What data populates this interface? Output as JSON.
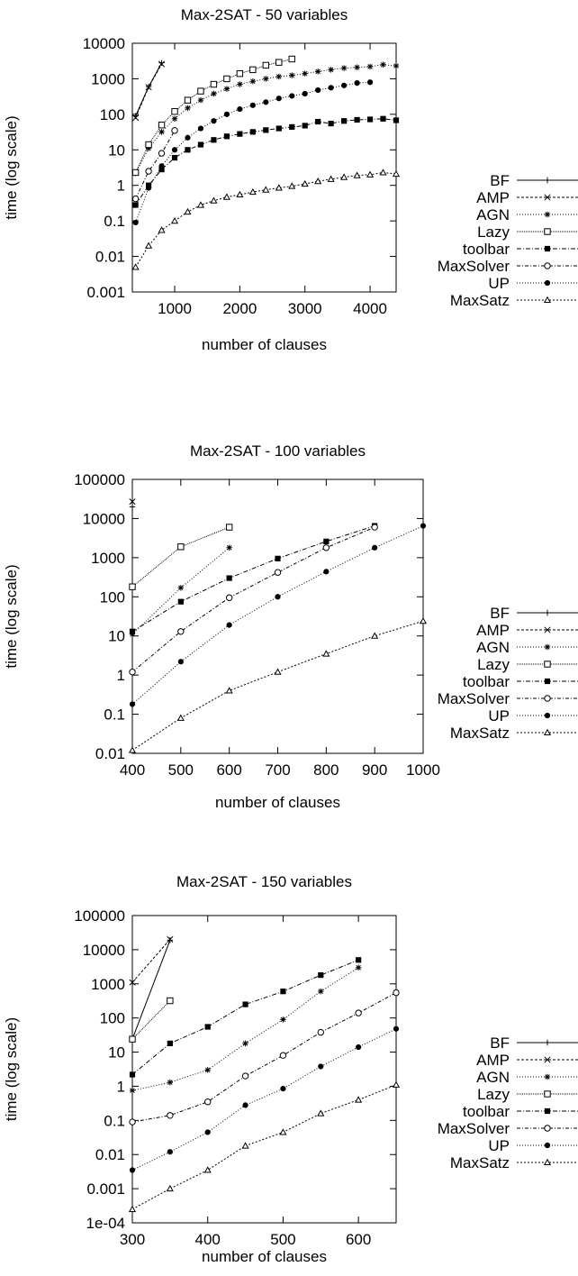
{
  "chart_data": [
    {
      "type": "line",
      "title": "Max-2SAT - 50 variables",
      "xlabel": "number of clauses",
      "ylabel": "time (log scale)",
      "xlim": [
        350,
        4400
      ],
      "ylim": [
        0.001,
        10000
      ],
      "yscale": "log",
      "xticks": [
        "1000",
        "2000",
        "3000",
        "4000"
      ],
      "xtick_values": [
        1000,
        2000,
        3000,
        4000
      ],
      "yticks": [
        "0.001",
        "0.01",
        "0.1",
        "1",
        "10",
        "100",
        "1000",
        "10000"
      ],
      "ytick_values": [
        0.001,
        0.01,
        0.1,
        1,
        10,
        100,
        1000,
        10000
      ],
      "legend_position": "right",
      "grid": false,
      "series": [
        {
          "name": "BF",
          "marker": "plus",
          "dash": "",
          "x": [
            400,
            600,
            800
          ],
          "y": [
            90,
            600,
            2800
          ]
        },
        {
          "name": "AMP",
          "marker": "x",
          "dash": "3,2",
          "x": [
            400,
            600,
            800
          ],
          "y": [
            80,
            580,
            2600
          ]
        },
        {
          "name": "AGN",
          "marker": "star",
          "dash": "1,2",
          "x": [
            400,
            600,
            800,
            1000,
            1200,
            1400,
            1600,
            1800,
            2000,
            2200,
            2400,
            2600,
            2800,
            3000,
            3200,
            3400,
            3600,
            3800,
            4000,
            4200,
            4400
          ],
          "y": [
            2.2,
            11,
            32,
            75,
            150,
            250,
            380,
            520,
            700,
            850,
            1000,
            1150,
            1250,
            1400,
            1600,
            1800,
            2000,
            2100,
            2200,
            2500,
            2300
          ]
        },
        {
          "name": "Lazy",
          "marker": "square-open",
          "dash": "1,1",
          "x": [
            400,
            600,
            800,
            1000,
            1200,
            1400,
            1600,
            1800,
            2000,
            2200,
            2400,
            2600,
            2800
          ],
          "y": [
            2.3,
            14,
            50,
            120,
            250,
            450,
            700,
            1000,
            1400,
            1800,
            2400,
            2900,
            3600
          ]
        },
        {
          "name": "toolbar",
          "marker": "square",
          "dash": "5,2,1,2",
          "x": [
            400,
            600,
            800,
            1000,
            1200,
            1400,
            1600,
            1800,
            2000,
            2200,
            2400,
            2600,
            2800,
            3000,
            3200,
            3400,
            3600,
            3800,
            4000,
            4200,
            4400
          ],
          "y": [
            0.28,
            1.0,
            2.8,
            6,
            10,
            14,
            19,
            24,
            28,
            32,
            36,
            40,
            44,
            48,
            62,
            55,
            65,
            70,
            72,
            75,
            68
          ]
        },
        {
          "name": "MaxSolver",
          "marker": "circle-open",
          "dash": "4,2,1,2",
          "x": [
            400,
            600,
            800,
            1000
          ],
          "y": [
            0.42,
            2.5,
            8,
            35
          ]
        },
        {
          "name": "UP",
          "marker": "circle",
          "dash": "1,2",
          "x": [
            400,
            600,
            800,
            1000,
            1200,
            1400,
            1600,
            1800,
            2000,
            2200,
            2400,
            2600,
            2800,
            3000,
            3200,
            3400,
            3600,
            3800,
            4000
          ],
          "y": [
            0.09,
            0.85,
            3.5,
            10,
            22,
            40,
            65,
            100,
            140,
            180,
            220,
            280,
            330,
            380,
            480,
            560,
            650,
            760,
            800
          ]
        },
        {
          "name": "MaxSatz",
          "marker": "triangle-open",
          "dash": "2,2",
          "x": [
            400,
            600,
            800,
            1000,
            1200,
            1400,
            1600,
            1800,
            2000,
            2200,
            2400,
            2600,
            2800,
            3000,
            3200,
            3400,
            3600,
            3800,
            4000,
            4200,
            4400
          ],
          "y": [
            0.005,
            0.02,
            0.055,
            0.1,
            0.18,
            0.28,
            0.37,
            0.47,
            0.55,
            0.65,
            0.75,
            0.85,
            0.95,
            1.1,
            1.3,
            1.5,
            1.7,
            1.9,
            2.0,
            2.3,
            2.1
          ]
        }
      ]
    },
    {
      "type": "line",
      "title": "Max-2SAT - 100 variables",
      "xlabel": "number of clauses",
      "ylabel": "time (log scale)",
      "xlim": [
        400,
        1000
      ],
      "ylim": [
        0.01,
        100000
      ],
      "yscale": "log",
      "xticks": [
        "400",
        "500",
        "600",
        "700",
        "800",
        "900",
        "1000"
      ],
      "xtick_values": [
        400,
        500,
        600,
        700,
        800,
        900,
        1000
      ],
      "yticks": [
        "0.01",
        "0.1",
        "1",
        "10",
        "100",
        "1000",
        "10000",
        "100000"
      ],
      "ytick_values": [
        0.01,
        0.1,
        1,
        10,
        100,
        1000,
        10000,
        100000
      ],
      "legend_position": "right",
      "grid": false,
      "series": [
        {
          "name": "BF",
          "marker": "plus",
          "dash": "",
          "x": [
            400
          ],
          "y": [
            20000
          ]
        },
        {
          "name": "AMP",
          "marker": "x",
          "dash": "3,2",
          "x": [
            400
          ],
          "y": [
            27000
          ]
        },
        {
          "name": "AGN",
          "marker": "star",
          "dash": "1,2",
          "x": [
            400,
            500,
            600
          ],
          "y": [
            11,
            170,
            1800
          ]
        },
        {
          "name": "Lazy",
          "marker": "square-open",
          "dash": "1,1",
          "x": [
            400,
            500,
            600
          ],
          "y": [
            180,
            1900,
            6000
          ]
        },
        {
          "name": "toolbar",
          "marker": "square",
          "dash": "5,2,1,2",
          "x": [
            400,
            500,
            600,
            700,
            800,
            900
          ],
          "y": [
            13,
            75,
            300,
            950,
            2600,
            6500
          ]
        },
        {
          "name": "MaxSolver",
          "marker": "circle-open",
          "dash": "4,2,1,2",
          "x": [
            400,
            500,
            600,
            700,
            800,
            900
          ],
          "y": [
            1.2,
            13,
            95,
            420,
            1800,
            6000
          ]
        },
        {
          "name": "UP",
          "marker": "circle",
          "dash": "1,2",
          "x": [
            400,
            500,
            600,
            700,
            800,
            900,
            1000
          ],
          "y": [
            0.18,
            2.2,
            19,
            100,
            440,
            1800,
            6500
          ]
        },
        {
          "name": "MaxSatz",
          "marker": "triangle-open",
          "dash": "2,2",
          "x": [
            400,
            500,
            600,
            700,
            800,
            900,
            1000
          ],
          "y": [
            0.012,
            0.08,
            0.4,
            1.2,
            3.5,
            10,
            24
          ]
        }
      ]
    },
    {
      "type": "line",
      "title": "Max-2SAT - 150 variables",
      "xlabel": "number of clauses",
      "ylabel": "time (log scale)",
      "xlim": [
        300,
        650
      ],
      "ylim": [
        0.0001,
        100000
      ],
      "yscale": "log",
      "xticks": [
        "300",
        "400",
        "500",
        "600"
      ],
      "xtick_values": [
        300,
        400,
        500,
        600
      ],
      "yticks": [
        "1e-04",
        "0.001",
        "0.01",
        "0.1",
        "1",
        "10",
        "100",
        "1000",
        "10000",
        "100000"
      ],
      "ytick_values": [
        0.0001,
        0.001,
        0.01,
        0.1,
        1,
        10,
        100,
        1000,
        10000,
        100000
      ],
      "legend_position": "right",
      "grid": false,
      "series": [
        {
          "name": "BF",
          "marker": "plus",
          "dash": "",
          "x": [
            300,
            350
          ],
          "y": [
            24,
            19000
          ]
        },
        {
          "name": "AMP",
          "marker": "x",
          "dash": "3,2",
          "x": [
            300,
            350
          ],
          "y": [
            1100,
            20000
          ]
        },
        {
          "name": "AGN",
          "marker": "star",
          "dash": "1,2",
          "x": [
            300,
            350,
            400,
            450,
            500,
            550,
            600
          ],
          "y": [
            0.75,
            1.3,
            3,
            18,
            90,
            600,
            3000
          ]
        },
        {
          "name": "Lazy",
          "marker": "square-open",
          "dash": "1,1",
          "x": [
            300,
            350
          ],
          "y": [
            24,
            320
          ]
        },
        {
          "name": "toolbar",
          "marker": "square",
          "dash": "5,2,1,2",
          "x": [
            300,
            350,
            400,
            450,
            500,
            550,
            600
          ],
          "y": [
            2.2,
            18,
            55,
            250,
            600,
            1800,
            5000
          ]
        },
        {
          "name": "MaxSolver",
          "marker": "circle-open",
          "dash": "4,2,1,2",
          "x": [
            300,
            350,
            400,
            450,
            500,
            550,
            600,
            650
          ],
          "y": [
            0.09,
            0.14,
            0.35,
            2,
            8,
            38,
            140,
            550
          ]
        },
        {
          "name": "UP",
          "marker": "circle",
          "dash": "1,2",
          "x": [
            300,
            350,
            400,
            450,
            500,
            550,
            600,
            650
          ],
          "y": [
            0.0035,
            0.012,
            0.045,
            0.28,
            0.85,
            3.8,
            14,
            48
          ]
        },
        {
          "name": "MaxSatz",
          "marker": "triangle-open",
          "dash": "2,2",
          "x": [
            300,
            350,
            400,
            450,
            500,
            550,
            600,
            650
          ],
          "y": [
            0.00025,
            0.001,
            0.0035,
            0.018,
            0.045,
            0.16,
            0.4,
            1.1
          ]
        }
      ]
    }
  ]
}
